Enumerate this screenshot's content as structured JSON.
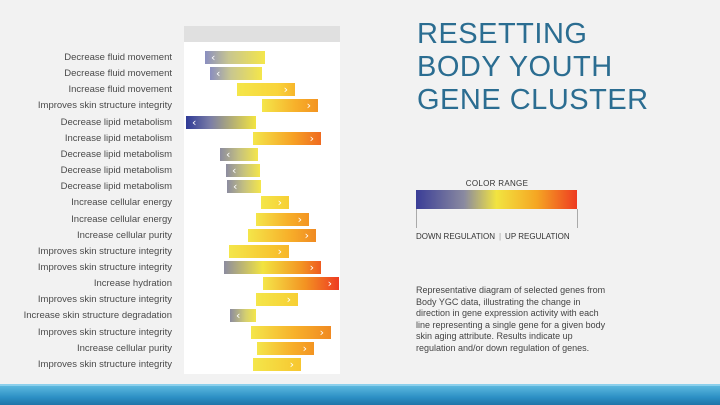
{
  "title_lines": [
    "RESETTING",
    "BODY YOUTH",
    "GENE CLUSTER"
  ],
  "genes": [
    {
      "label": "Decrease fluid movement",
      "direction": "down"
    },
    {
      "label": "Decrease fluid movement",
      "direction": "down"
    },
    {
      "label": "Increase fluid movement",
      "direction": "up"
    },
    {
      "label": "Improves skin structure integrity",
      "direction": "up"
    },
    {
      "label": "Decrease lipid metabolism",
      "direction": "down"
    },
    {
      "label": "Increase lipid metabolism",
      "direction": "up"
    },
    {
      "label": "Decrease lipid metabolism",
      "direction": "down"
    },
    {
      "label": "Decrease lipid metabolism",
      "direction": "down"
    },
    {
      "label": "Decrease lipid metabolism",
      "direction": "down"
    },
    {
      "label": "Increase cellular energy",
      "direction": "up"
    },
    {
      "label": "Increase cellular energy",
      "direction": "up"
    },
    {
      "label": "Increase cellular purity",
      "direction": "up"
    },
    {
      "label": "Improves skin structure integrity",
      "direction": "up"
    },
    {
      "label": "Improves skin structure integrity",
      "direction": "up"
    },
    {
      "label": "Increase hydration",
      "direction": "up"
    },
    {
      "label": "Improves skin structure integrity",
      "direction": "up"
    },
    {
      "label": "Increase skin structure degradation",
      "direction": "down"
    },
    {
      "label": "Improves skin structure integrity",
      "direction": "up"
    },
    {
      "label": "Increase cellular purity",
      "direction": "up"
    },
    {
      "label": "Improves skin structure integrity",
      "direction": "up"
    }
  ],
  "color_range": {
    "title": "COLOR RANGE",
    "down_label": "DOWN REGULATION",
    "separator": "|",
    "up_label": "UP REGULATION",
    "colors": [
      "#3a3d97",
      "#f2e440",
      "#ee3b22"
    ]
  },
  "description": "Representative diagram of selected genes from Body YGC data, illustrating the change in direction in gene expression activity with each line representing a single gene for a given body skin aging attribute. Results indicate up regulation and/or down regulation of genes.",
  "colors": {
    "title": "#2b6d91",
    "footer": "#2c8fc4"
  }
}
